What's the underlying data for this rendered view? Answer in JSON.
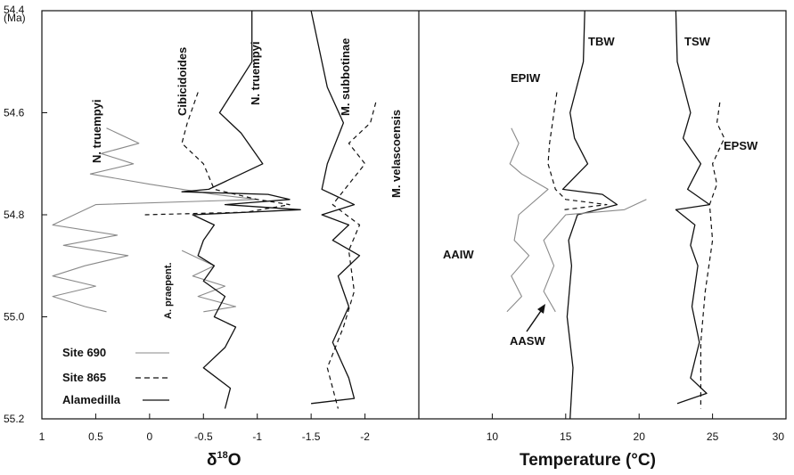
{
  "chart_data": [
    {
      "type": "line",
      "panel": "left",
      "xlabel": "δ18O",
      "xlabel_main": "δ",
      "xlabel_sup": "18",
      "xlabel_tail": "O",
      "x_reversed": true,
      "xlim": [
        1,
        -2.5
      ],
      "ylim": [
        54.4,
        55.2
      ],
      "y_reversed": true,
      "y_unit": "(Ma)",
      "x_ticks": [
        "1",
        "0.5",
        "0",
        "-0.5",
        "-1",
        "-1.5",
        "-2"
      ],
      "x_tick_values": [
        1,
        0.5,
        0,
        -0.5,
        -1,
        -1.5,
        -2
      ],
      "y_ticks": [
        "54.4",
        "54.6",
        "54.8",
        "55.0",
        "55.2"
      ],
      "y_tick_values": [
        54.4,
        54.6,
        54.8,
        55.0,
        55.2
      ],
      "grid": false,
      "legend": [
        {
          "label": "Site 690",
          "style": "thin-gray"
        },
        {
          "label": "Site 865",
          "style": "dashed"
        },
        {
          "label": "Alamedilla",
          "style": "solid"
        }
      ],
      "annotations": [
        "N. truempyi",
        "Cibicidoides",
        "N. truempyi",
        "M. subbotinae",
        "M. velascoensis",
        "A. praepent."
      ],
      "series": [
        {
          "name": "N. truempyi",
          "style": "thin-gray",
          "points": [
            [
              0.4,
              54.63
            ],
            [
              0.1,
              54.66
            ],
            [
              0.45,
              54.68
            ],
            [
              0.15,
              54.7
            ],
            [
              0.55,
              54.72
            ],
            [
              0.0,
              54.74
            ],
            [
              -0.6,
              54.76
            ],
            [
              -1.0,
              54.77
            ],
            [
              0.5,
              54.78
            ],
            [
              0.9,
              54.82
            ],
            [
              0.3,
              54.84
            ],
            [
              0.8,
              54.86
            ],
            [
              0.2,
              54.88
            ],
            [
              0.6,
              54.9
            ],
            [
              0.9,
              54.92
            ],
            [
              0.5,
              54.94
            ],
            [
              0.9,
              54.96
            ],
            [
              0.6,
              54.98
            ],
            [
              0.4,
              54.99
            ]
          ]
        },
        {
          "name": "A. praepent.",
          "style": "thin-gray",
          "points": [
            [
              -0.3,
              54.87
            ],
            [
              -0.6,
              54.9
            ],
            [
              -0.4,
              54.92
            ],
            [
              -0.7,
              54.94
            ],
            [
              -0.45,
              54.96
            ],
            [
              -0.8,
              54.98
            ],
            [
              -0.5,
              54.99
            ]
          ]
        },
        {
          "name": "Cibicidoides",
          "style": "dashed",
          "points": [
            [
              -0.45,
              54.56
            ],
            [
              -0.35,
              54.62
            ],
            [
              -0.3,
              54.66
            ],
            [
              -0.5,
              54.7
            ],
            [
              -0.6,
              54.75
            ],
            [
              -1.0,
              54.77
            ],
            [
              -1.3,
              54.78
            ],
            [
              -0.9,
              54.795
            ],
            [
              0.05,
              54.8
            ]
          ]
        },
        {
          "name": "N. truempyi",
          "style": "solid",
          "points": [
            [
              -0.95,
              54.4
            ],
            [
              -0.95,
              54.5
            ],
            [
              -0.65,
              54.6
            ],
            [
              -0.85,
              54.64
            ],
            [
              -1.05,
              54.7
            ],
            [
              -0.55,
              54.75
            ],
            [
              -0.3,
              54.755
            ],
            [
              -1.1,
              54.76
            ],
            [
              -1.3,
              54.77
            ],
            [
              -0.7,
              54.78
            ],
            [
              -1.4,
              54.79
            ],
            [
              -0.4,
              54.8
            ],
            [
              -0.6,
              54.82
            ],
            [
              -0.5,
              54.85
            ],
            [
              -0.45,
              54.88
            ],
            [
              -0.6,
              54.9
            ],
            [
              -0.5,
              54.93
            ],
            [
              -0.7,
              54.96
            ],
            [
              -0.6,
              55.0
            ],
            [
              -0.8,
              55.02
            ],
            [
              -0.7,
              55.06
            ],
            [
              -0.5,
              55.1
            ],
            [
              -0.75,
              55.14
            ],
            [
              -0.7,
              55.18
            ]
          ]
        },
        {
          "name": "M. subbotinae",
          "style": "solid",
          "points": [
            [
              -1.5,
              54.4
            ],
            [
              -1.65,
              54.55
            ],
            [
              -1.8,
              54.62
            ],
            [
              -1.65,
              54.7
            ],
            [
              -1.6,
              54.75
            ],
            [
              -1.9,
              54.78
            ],
            [
              -1.6,
              54.8
            ],
            [
              -1.85,
              54.82
            ],
            [
              -1.7,
              54.85
            ],
            [
              -1.95,
              54.88
            ],
            [
              -1.75,
              54.92
            ],
            [
              -1.85,
              54.98
            ],
            [
              -1.7,
              55.05
            ],
            [
              -1.85,
              55.12
            ],
            [
              -1.9,
              55.16
            ],
            [
              -1.5,
              55.17
            ]
          ]
        },
        {
          "name": "M. velascoensis",
          "style": "dashed",
          "points": [
            [
              -2.1,
              54.58
            ],
            [
              -2.05,
              54.62
            ],
            [
              -1.85,
              54.66
            ],
            [
              -2.0,
              54.7
            ],
            [
              -1.85,
              54.74
            ],
            [
              -1.7,
              54.78
            ],
            [
              -1.95,
              54.82
            ],
            [
              -1.85,
              54.87
            ],
            [
              -1.9,
              54.95
            ],
            [
              -1.8,
              55.02
            ],
            [
              -1.65,
              55.1
            ],
            [
              -1.75,
              55.18
            ]
          ]
        }
      ]
    },
    {
      "type": "line",
      "panel": "right",
      "xlabel": "Temperature (°C)",
      "xlim": [
        5,
        30
      ],
      "ylim": [
        54.4,
        55.2
      ],
      "y_reversed": true,
      "x_ticks": [
        "10",
        "15",
        "20",
        "25",
        "30"
      ],
      "x_tick_values": [
        10,
        15,
        20,
        25,
        30
      ],
      "grid": false,
      "annotations": [
        "TBW",
        "TSW",
        "EPIW",
        "EPSW",
        "AAIW",
        "AASW"
      ],
      "series": [
        {
          "name": "TBW",
          "style": "solid",
          "points": [
            [
              16.3,
              54.4
            ],
            [
              16.2,
              54.5
            ],
            [
              15.3,
              54.6
            ],
            [
              15.6,
              54.65
            ],
            [
              16.5,
              54.7
            ],
            [
              14.8,
              54.75
            ],
            [
              17.5,
              54.76
            ],
            [
              18.5,
              54.78
            ],
            [
              15.8,
              54.8
            ],
            [
              15.2,
              54.85
            ],
            [
              15.4,
              54.9
            ],
            [
              15.1,
              55.0
            ],
            [
              15.5,
              55.1
            ],
            [
              15.3,
              55.2
            ]
          ]
        },
        {
          "name": "TSW",
          "style": "solid",
          "points": [
            [
              22.5,
              54.4
            ],
            [
              22.6,
              54.5
            ],
            [
              23.5,
              54.6
            ],
            [
              23.0,
              54.65
            ],
            [
              24.2,
              54.7
            ],
            [
              23.3,
              54.75
            ],
            [
              24.8,
              54.78
            ],
            [
              22.5,
              54.79
            ],
            [
              23.8,
              54.82
            ],
            [
              23.5,
              54.86
            ],
            [
              24.0,
              54.9
            ],
            [
              23.6,
              54.98
            ],
            [
              24.1,
              55.05
            ],
            [
              23.5,
              55.12
            ],
            [
              24.6,
              55.15
            ],
            [
              22.6,
              55.17
            ]
          ]
        },
        {
          "name": "EPIW",
          "style": "dashed",
          "points": [
            [
              14.4,
              54.56
            ],
            [
              14.1,
              54.62
            ],
            [
              13.9,
              54.66
            ],
            [
              13.8,
              54.7
            ],
            [
              14.3,
              54.75
            ],
            [
              15.0,
              54.77
            ],
            [
              17.8,
              54.78
            ],
            [
              14.9,
              54.79
            ]
          ]
        },
        {
          "name": "EPSW",
          "style": "dashed",
          "points": [
            [
              25.5,
              54.58
            ],
            [
              25.3,
              54.62
            ],
            [
              25.8,
              54.65
            ],
            [
              25.0,
              54.7
            ],
            [
              25.3,
              54.74
            ],
            [
              24.8,
              54.78
            ],
            [
              25.0,
              54.85
            ],
            [
              24.5,
              54.95
            ],
            [
              24.2,
              55.05
            ],
            [
              24.2,
              55.18
            ]
          ]
        },
        {
          "name": "AAIW",
          "style": "thin-gray",
          "points": [
            [
              11.3,
              54.63
            ],
            [
              11.8,
              54.66
            ],
            [
              11.2,
              54.7
            ],
            [
              12.0,
              54.72
            ],
            [
              13.8,
              54.75
            ],
            [
              11.8,
              54.8
            ],
            [
              11.5,
              54.85
            ],
            [
              12.5,
              54.88
            ],
            [
              11.3,
              54.92
            ],
            [
              12.0,
              54.96
            ],
            [
              11.0,
              54.99
            ]
          ]
        },
        {
          "name": "AASW",
          "style": "thin-gray",
          "points": [
            [
              20.5,
              54.77
            ],
            [
              19.0,
              54.79
            ],
            [
              15.0,
              54.8
            ],
            [
              13.5,
              54.85
            ],
            [
              14.2,
              54.9
            ],
            [
              13.5,
              54.95
            ],
            [
              14.3,
              54.99
            ]
          ]
        }
      ]
    }
  ]
}
